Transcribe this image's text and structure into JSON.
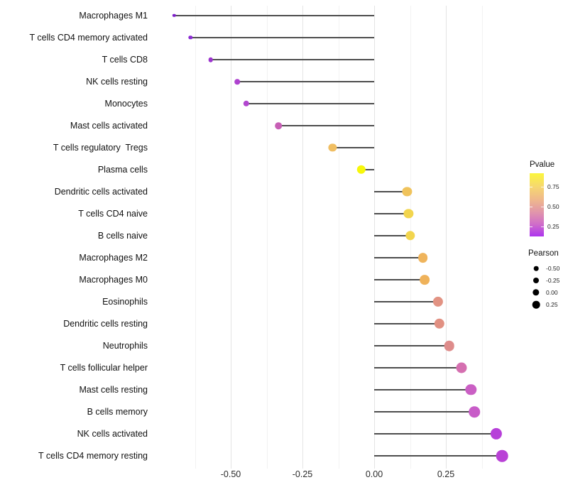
{
  "chart_data": {
    "type": "lollipop",
    "title": "",
    "xlabel": "",
    "ylabel": "",
    "grid": "vertical-only",
    "xlim": [
      -0.76,
      0.54
    ],
    "x_ticks": [
      {
        "label": "-0.50",
        "value": -0.5
      },
      {
        "label": "-0.25",
        "value": -0.25
      },
      {
        "label": "0.00",
        "value": 0.0
      },
      {
        "label": "0.25",
        "value": 0.25
      }
    ],
    "x_minor_ticks": [
      -0.625,
      -0.375,
      -0.125,
      0.125,
      0.375
    ],
    "rows": [
      {
        "label": "Macrophages M1",
        "pearson": -0.697,
        "color": "#7d1fc9",
        "radius": 2.2
      },
      {
        "label": "T cells CD4 memory activated",
        "pearson": -0.64,
        "color": "#8b2bd3",
        "radius": 2.7
      },
      {
        "label": "T cells CD8",
        "pearson": -0.57,
        "color": "#9c34ce",
        "radius": 3.3
      },
      {
        "label": "NK cells resting",
        "pearson": -0.477,
        "color": "#ae42cf",
        "radius": 3.8
      },
      {
        "label": "Monocytes",
        "pearson": -0.446,
        "color": "#b247cf",
        "radius": 4.2
      },
      {
        "label": "Mast cells activated",
        "pearson": -0.334,
        "color": "#c75fb5",
        "radius": 4.8
      },
      {
        "label": "T cells regulatory  Tregs",
        "pearson": -0.145,
        "color": "#f0be62",
        "radius": 5.6
      },
      {
        "label": "Plasma cells",
        "pearson": -0.045,
        "color": "#f7f70b",
        "radius": 6.2
      },
      {
        "label": "Dendritic cells activated",
        "pearson": 0.115,
        "color": "#f0c35c",
        "radius": 6.6
      },
      {
        "label": "T cells CD4 naive",
        "pearson": 0.12,
        "color": "#f2d54e",
        "radius": 6.6
      },
      {
        "label": "B cells naive",
        "pearson": 0.125,
        "color": "#f2d54e",
        "radius": 6.7
      },
      {
        "label": "Macrophages M2",
        "pearson": 0.17,
        "color": "#efb45c",
        "radius": 6.9
      },
      {
        "label": "Macrophages M0",
        "pearson": 0.176,
        "color": "#efb25a",
        "radius": 6.9
      },
      {
        "label": "Eosinophils",
        "pearson": 0.222,
        "color": "#e29383",
        "radius": 7.1
      },
      {
        "label": "Dendritic cells resting",
        "pearson": 0.227,
        "color": "#e19082",
        "radius": 7.2
      },
      {
        "label": "Neutrophils",
        "pearson": 0.262,
        "color": "#de8c8b",
        "radius": 7.3
      },
      {
        "label": "T cells follicular helper",
        "pearson": 0.305,
        "color": "#d56fb0",
        "radius": 7.5
      },
      {
        "label": "Mast cells resting",
        "pearson": 0.337,
        "color": "#ca5fc4",
        "radius": 7.7
      },
      {
        "label": "B cells memory",
        "pearson": 0.35,
        "color": "#c85cc8",
        "radius": 7.8
      },
      {
        "label": "NK cells activated",
        "pearson": 0.426,
        "color": "#b73fd9",
        "radius": 8.1
      },
      {
        "label": "T cells CD4 memory resting",
        "pearson": 0.446,
        "color": "#b942d6",
        "radius": 8.3
      }
    ],
    "legend_pvalue": {
      "title": "Pvalue",
      "tick_labels": [
        "0.75",
        "0.50",
        "0.25"
      ],
      "gradient_stops": [
        "#fbf63c",
        "#f6d96e",
        "#f0bb89",
        "#e299a8",
        "#d06fc8",
        "#ad34ee"
      ]
    },
    "legend_pearson": {
      "title": "Pearson",
      "items": [
        {
          "label": "-0.50",
          "radius": 3.3
        },
        {
          "label": "-0.25",
          "radius": 4.0
        },
        {
          "label": "0.00",
          "radius": 4.7
        },
        {
          "label": "0.25",
          "radius": 5.3
        }
      ]
    },
    "colors": {
      "segment": "#4d4d4d",
      "grid_major": "#e4e4e4",
      "grid_minor": "#f2f2f2",
      "background": "#ffffff"
    }
  }
}
